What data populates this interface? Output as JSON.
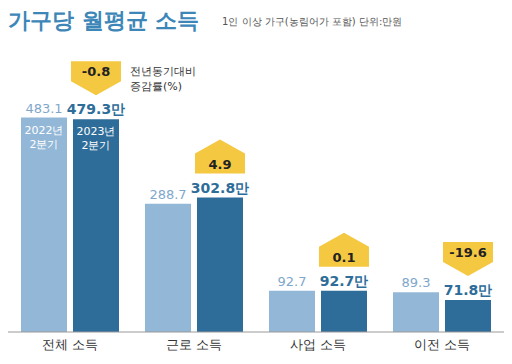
{
  "chart_data": {
    "type": "bar",
    "title": "가구당 월평균 소득",
    "subtitle": "1인 이상 가구(농림어가 포함) 단위:만원",
    "categories": [
      "전체 소득",
      "근로 소득",
      "사업 소득",
      "이전 소득"
    ],
    "series": [
      {
        "name": "2022년 2분기",
        "color": "#93b7d6",
        "values": [
          483.1,
          288.7,
          92.7,
          89.3
        ]
      },
      {
        "name": "2023년 2분기",
        "color": "#2e6d99",
        "values": [
          479.3,
          302.8,
          92.7,
          71.8
        ],
        "value_labels": [
          "479.3만",
          "302.8만",
          "92.7만",
          "71.8만"
        ]
      }
    ],
    "ylim": [
      0,
      500
    ],
    "data_labels": true,
    "tick_labels": "x",
    "grid": false,
    "change_rates": {
      "label": "전년동기대비 증감률(%)",
      "values": [
        -0.8,
        4.9,
        0.1,
        -19.6
      ],
      "color": "#f5c842"
    }
  }
}
